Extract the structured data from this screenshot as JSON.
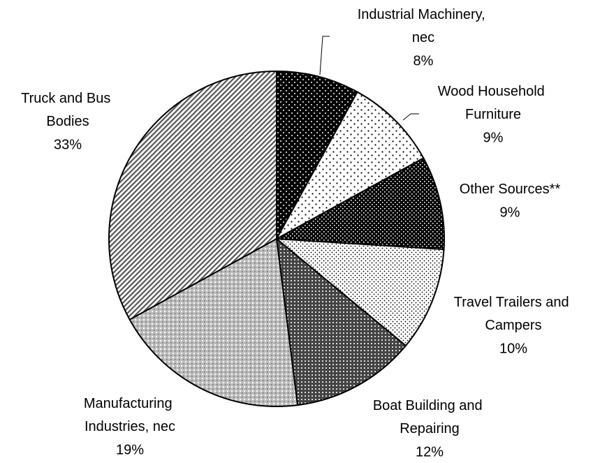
{
  "chart_data": {
    "type": "pie",
    "categories": [
      "Industrial Machinery, nec",
      "Wood Household Furniture",
      "Other Sources**",
      "Travel Trailers and Campers",
      "Boat Building and Repairing",
      "Manufacturing Industries, nec",
      "Truck and Bus Bodies"
    ],
    "values": [
      8,
      9,
      9,
      10,
      12,
      19,
      33
    ],
    "value_labels": [
      "8%",
      "9%",
      "9%",
      "10%",
      "12%",
      "19%",
      "33%"
    ]
  }
}
